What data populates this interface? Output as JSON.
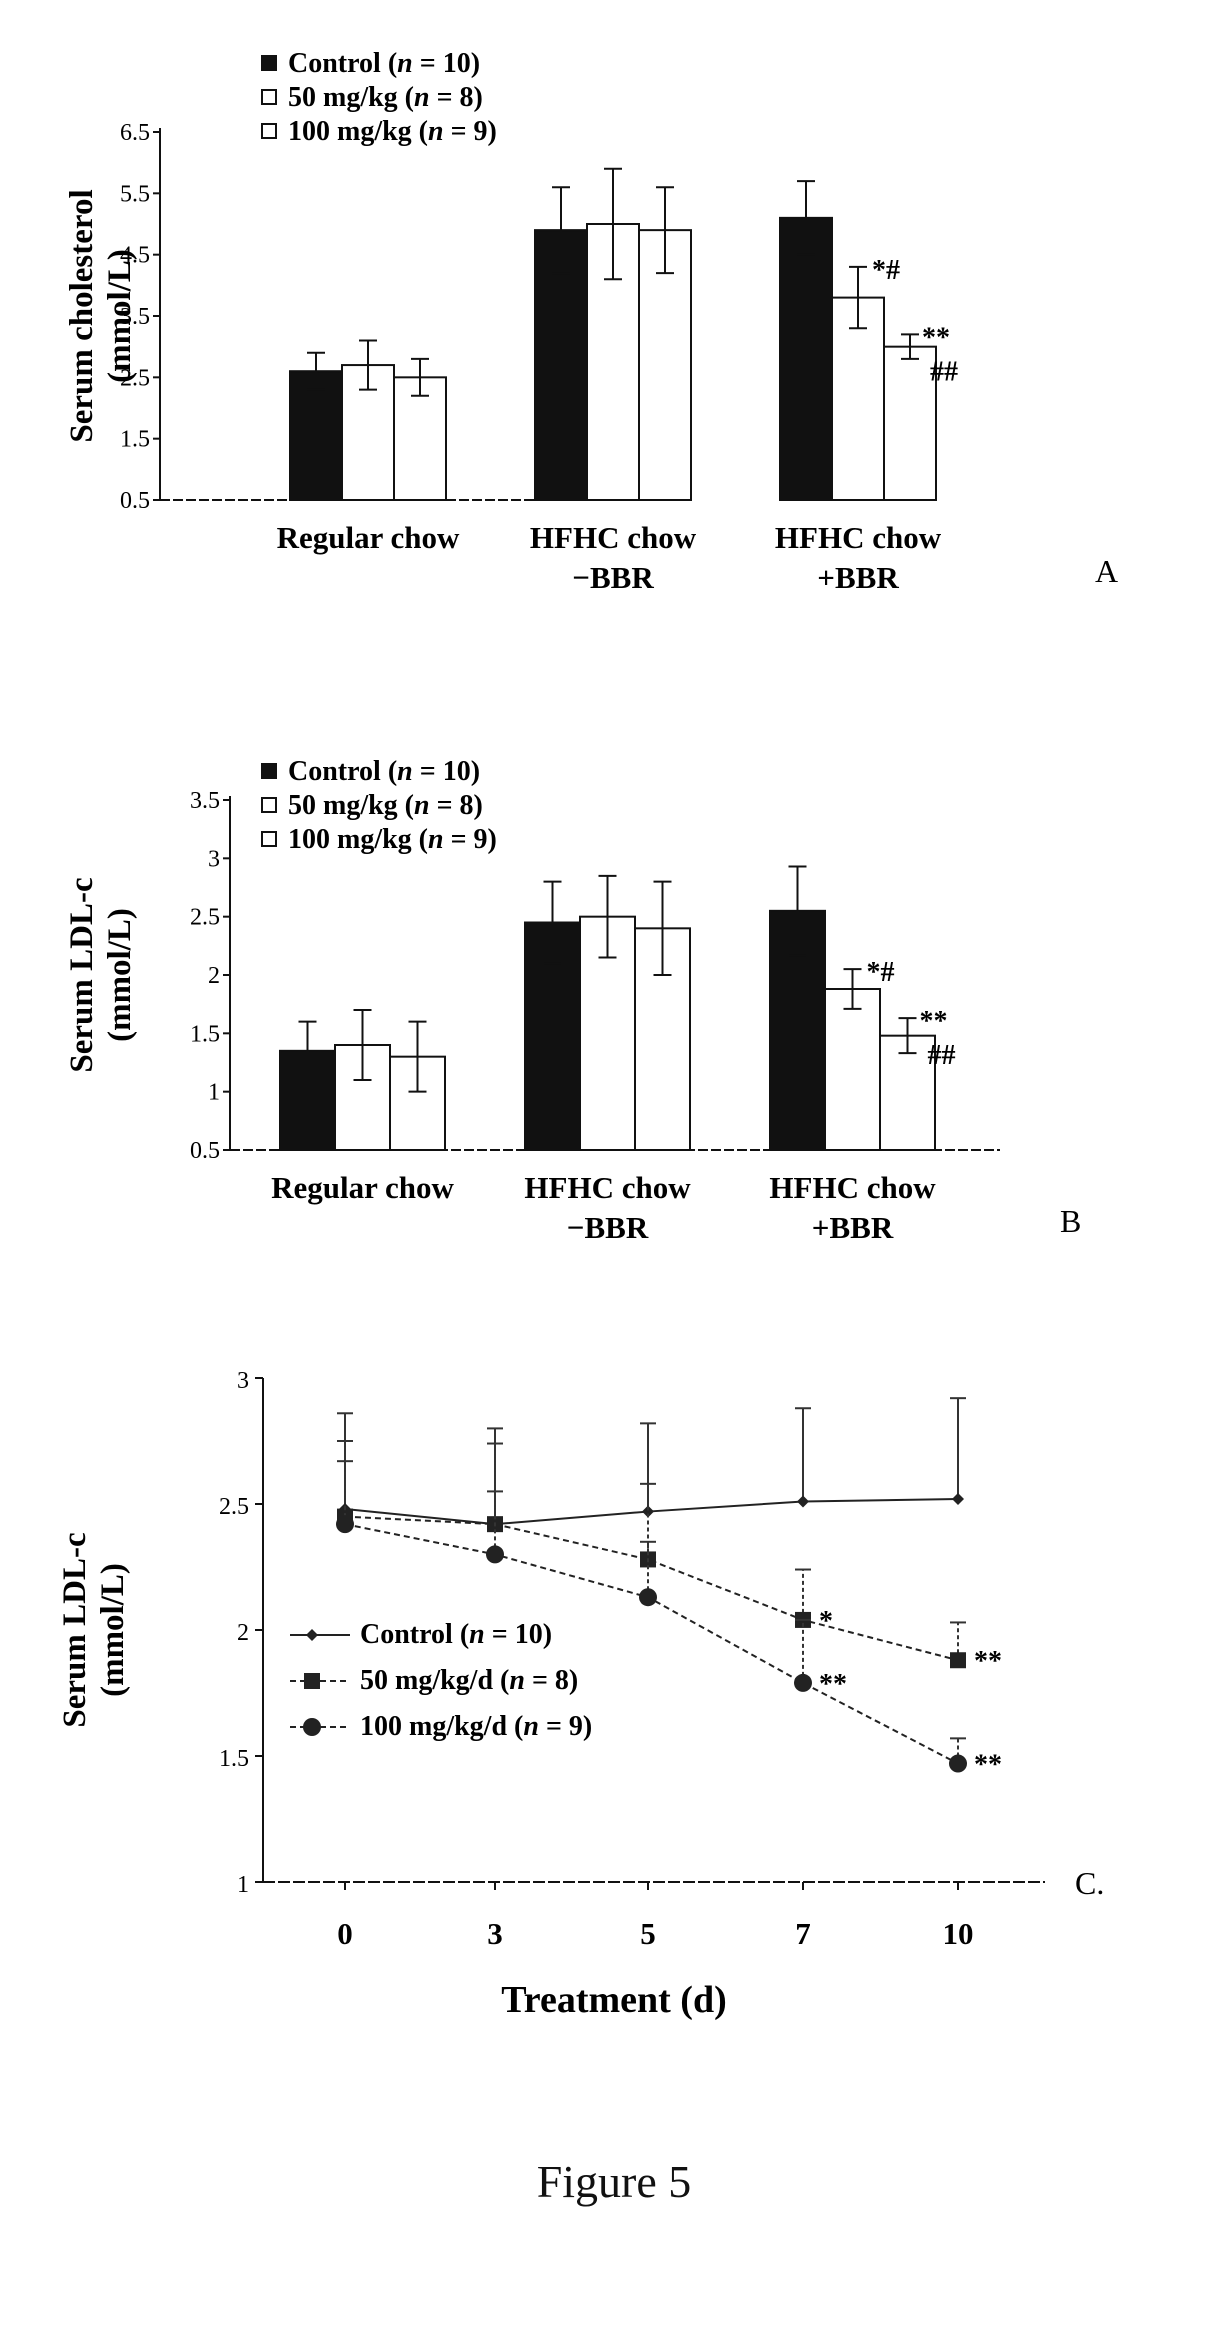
{
  "figure_caption": "Figure 5",
  "colors": {
    "control": "#111111",
    "dose50": "#ffffff",
    "dose100": "#ffffff",
    "line": "#222222"
  },
  "chart_data": [
    {
      "panel": "A",
      "type": "bar",
      "ylabel": [
        "Serum cholesterol",
        "(mmol/L)"
      ],
      "ylim": [
        0.5,
        6.5
      ],
      "yticks": [
        "0.5",
        "1.5",
        "2.5",
        "3.5",
        "4.5",
        "5.5",
        "6.5"
      ],
      "categories": [
        [
          "Regular chow"
        ],
        [
          "HFHC  chow",
          "−BBR"
        ],
        [
          "HFHC chow",
          "+BBR"
        ]
      ],
      "legend": [
        "Control (n = 10)",
        "50 mg/kg (n = 8)",
        "100 mg/kg (n = 9)"
      ],
      "legend_position": "top-left",
      "series": [
        {
          "name": "Control (n = 10)",
          "values": [
            2.6,
            4.9,
            5.1
          ],
          "errors": [
            0.3,
            0.7,
            0.6
          ]
        },
        {
          "name": "50 mg/kg (n = 8)",
          "values": [
            2.7,
            5.0,
            3.8
          ],
          "errors": [
            0.4,
            0.9,
            0.5
          ]
        },
        {
          "name": "100 mg/kg (n = 9)",
          "values": [
            2.5,
            4.9,
            3.0
          ],
          "errors": [
            0.3,
            0.7,
            0.2
          ]
        }
      ],
      "annotations": [
        {
          "category": 2,
          "series": 1,
          "text": "*#"
        },
        {
          "category": 2,
          "series": 2,
          "text": "**"
        },
        {
          "category": 2,
          "series": 2,
          "text": "##"
        }
      ]
    },
    {
      "panel": "B",
      "type": "bar",
      "ylabel": [
        "Serum LDL-c",
        "(mmol/L)"
      ],
      "ylim": [
        0.5,
        3.5
      ],
      "yticks": [
        "0.5",
        "1",
        "1.5",
        "2",
        "2.5",
        "3",
        "3.5"
      ],
      "categories": [
        [
          "Regular chow"
        ],
        [
          "HFHC chow",
          "−BBR"
        ],
        [
          "HFHC chow",
          "+BBR"
        ]
      ],
      "legend": [
        "Control (n = 10)",
        "50 mg/kg (n = 8)",
        "100 mg/kg (n = 9)"
      ],
      "legend_position": "top-left",
      "series": [
        {
          "name": "Control (n = 10)",
          "values": [
            1.35,
            2.45,
            2.55
          ],
          "errors": [
            0.25,
            0.35,
            0.38
          ]
        },
        {
          "name": "50 mg/kg (n = 8)",
          "values": [
            1.4,
            2.5,
            1.88
          ],
          "errors": [
            0.3,
            0.35,
            0.17
          ]
        },
        {
          "name": "100 mg/kg (n = 9)",
          "values": [
            1.3,
            2.4,
            1.48
          ],
          "errors": [
            0.3,
            0.4,
            0.15
          ]
        }
      ],
      "annotations": [
        {
          "category": 2,
          "series": 1,
          "text": "*#"
        },
        {
          "category": 2,
          "series": 2,
          "text": "**"
        },
        {
          "category": 2,
          "series": 2,
          "text": "##"
        }
      ]
    },
    {
      "panel": "C",
      "type": "line",
      "ylabel": [
        "Serum LDL-c",
        "(mmol/L)"
      ],
      "xlabel": "Treatment (d)",
      "x": [
        0,
        3,
        5,
        7,
        10
      ],
      "xticks": [
        "0",
        "3",
        "5",
        "7",
        "10"
      ],
      "ylim": [
        1,
        3
      ],
      "yticks": [
        "1",
        "1.5",
        "2",
        "2.5",
        "3"
      ],
      "legend_position": "middle-left",
      "series": [
        {
          "name": "Control (n = 10)",
          "marker": "diamond",
          "values": [
            2.48,
            2.42,
            2.47,
            2.51,
            2.52
          ],
          "errors": [
            0.38,
            0.38,
            0.35,
            0.37,
            0.4
          ]
        },
        {
          "name": "50 mg/kg/d (n = 8)",
          "marker": "square",
          "values": [
            2.45,
            2.42,
            2.28,
            2.04,
            1.88
          ],
          "errors": [
            0.3,
            0.32,
            0.3,
            0.2,
            0.15
          ]
        },
        {
          "name": "100 mg/kg/d (n = 9)",
          "marker": "circle",
          "values": [
            2.42,
            2.3,
            2.13,
            1.79,
            1.47
          ],
          "errors": [
            0.25,
            0.25,
            0.22,
            0.25,
            0.1
          ]
        }
      ],
      "annotations": [
        {
          "series": 1,
          "point": 3,
          "text": "*"
        },
        {
          "series": 1,
          "point": 4,
          "text": "**"
        },
        {
          "series": 2,
          "point": 3,
          "text": "**"
        },
        {
          "series": 2,
          "point": 4,
          "text": "**"
        }
      ]
    }
  ]
}
